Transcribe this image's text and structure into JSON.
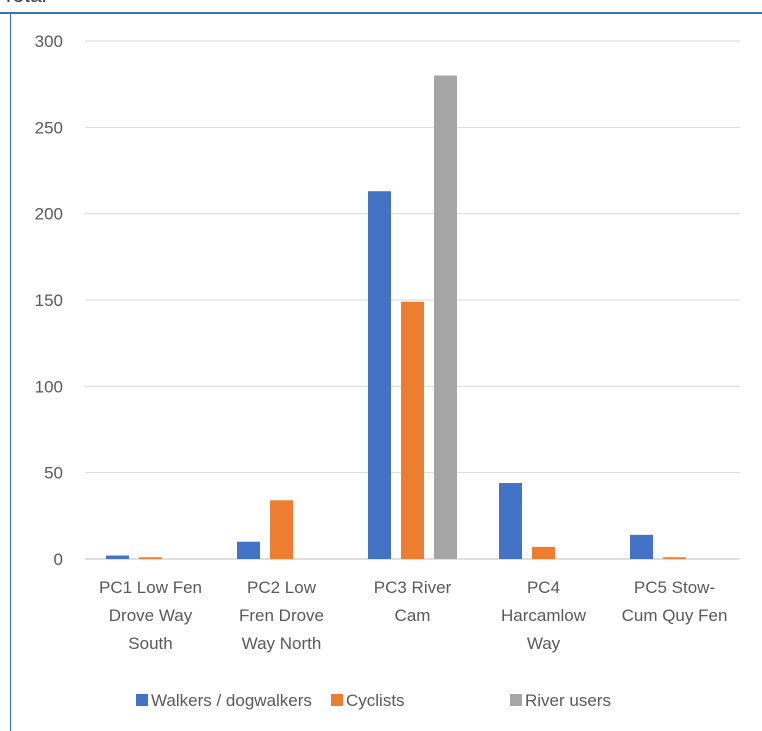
{
  "chart_title": "Total",
  "chart_data": {
    "type": "bar",
    "categories": [
      [
        "PC1 Low Fen",
        "Drove Way",
        "South"
      ],
      [
        "PC2 Low",
        "Fren Drove",
        "Way North"
      ],
      [
        "PC3 River",
        "Cam"
      ],
      [
        "PC4",
        "Harcamlow",
        "Way"
      ],
      [
        "PC5 Stow-",
        "Cum Quy Fen"
      ]
    ],
    "series": [
      {
        "name": "Walkers / dogwalkers",
        "color": "#4472c4",
        "values": [
          2,
          10,
          213,
          44,
          14
        ]
      },
      {
        "name": "Cyclists",
        "color": "#ed7d31",
        "values": [
          1,
          34,
          149,
          7,
          1
        ]
      },
      {
        "name": "River users",
        "color": "#a5a5a5",
        "values": [
          0,
          0,
          280,
          0,
          0
        ]
      }
    ],
    "ylim": [
      0,
      300
    ],
    "yticks": [
      0,
      50,
      100,
      150,
      200,
      250,
      300
    ],
    "grid": true,
    "legend": "bottom"
  }
}
